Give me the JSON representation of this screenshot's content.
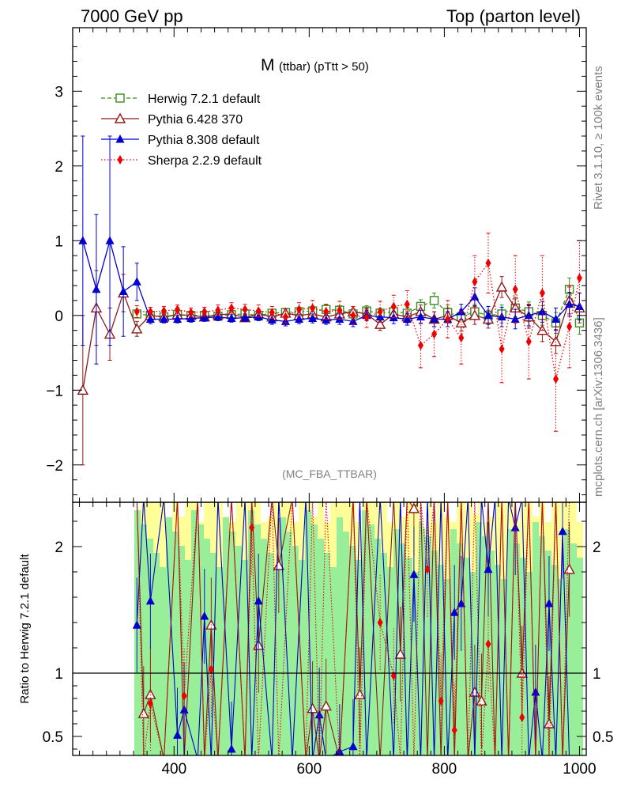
{
  "header": {
    "left": "7000 GeV pp",
    "right": "Top (parton level)"
  },
  "side_labels": {
    "rivet": "Rivet 3.1.10, ≥ 100k events",
    "mcplots": "mcplots.cern.ch [arXiv:1306.3436]"
  },
  "plot_title": {
    "main": "M",
    "sub": "(ttbar) (pTtt > 50)"
  },
  "analysis_tag": "(MC_FBA_TTBAR)",
  "ratio_ylabel": "Ratio to Herwig 7.2.1 default",
  "colors": {
    "herwig": "#3a8c1f",
    "pythia6": "#8b1a1a",
    "pythia8": "#0000d0",
    "sherpa": "#ee0000",
    "band_green": "#99ee99",
    "band_yellow": "#ffff99"
  },
  "chart_data": [
    {
      "type": "scatter",
      "panel": "main",
      "x_ticks": [
        "400",
        "600",
        "800",
        "1000"
      ],
      "y_ticks": [
        "−2",
        "−1",
        "0",
        "1",
        "2",
        "3"
      ],
      "xlim": [
        250,
        1010
      ],
      "ylim": [
        -2.5,
        3.85
      ],
      "legend_position": "top-left",
      "x": [
        265,
        285,
        305,
        325,
        345,
        365,
        385,
        405,
        425,
        445,
        465,
        485,
        505,
        525,
        545,
        565,
        585,
        605,
        625,
        645,
        665,
        685,
        705,
        725,
        745,
        765,
        785,
        805,
        825,
        845,
        865,
        885,
        905,
        925,
        945,
        965,
        985,
        1000
      ],
      "series": [
        {
          "name": "Herwig 7.2.1 default",
          "marker": "square-open",
          "line": "dashed",
          "values": [
            null,
            null,
            null,
            null,
            0.02,
            0.0,
            -0.02,
            0.01,
            0.0,
            0.0,
            -0.01,
            0.01,
            0.02,
            0.0,
            0.03,
            0.04,
            0.05,
            0.06,
            0.08,
            0.07,
            0.02,
            0.06,
            0.03,
            0.05,
            0.03,
            0.12,
            0.2,
            0.04,
            -0.02,
            0.05,
            0.0,
            0.02,
            0.1,
            0.05,
            0.0,
            -0.1,
            0.35,
            -0.1
          ],
          "errors": [
            null,
            null,
            null,
            null,
            0.05,
            0.04,
            0.04,
            0.04,
            0.04,
            0.04,
            0.04,
            0.05,
            0.05,
            0.05,
            0.05,
            0.05,
            0.06,
            0.06,
            0.06,
            0.06,
            0.07,
            0.07,
            0.07,
            0.08,
            0.08,
            0.09,
            0.1,
            0.1,
            0.1,
            0.1,
            0.12,
            0.12,
            0.12,
            0.13,
            0.13,
            0.14,
            0.15,
            0.15
          ]
        },
        {
          "name": "Pythia 6.428 370",
          "marker": "triangle-open",
          "line": "solid",
          "values": [
            -1.0,
            0.1,
            -0.25,
            0.3,
            -0.18,
            0.0,
            -0.02,
            0.01,
            0.0,
            -0.02,
            0.01,
            0.02,
            -0.03,
            0.02,
            -0.02,
            0.03,
            0.0,
            0.02,
            -0.02,
            0.02,
            0.05,
            0.02,
            -0.12,
            0.02,
            -0.02,
            0.05,
            -0.05,
            0.0,
            -0.1,
            0.0,
            -0.05,
            0.38,
            0.1,
            -0.02,
            -0.2,
            -0.35,
            0.2,
            0.1
          ],
          "errors": [
            1.0,
            0.5,
            0.35,
            0.25,
            0.1,
            0.05,
            0.05,
            0.05,
            0.05,
            0.05,
            0.05,
            0.05,
            0.05,
            0.05,
            0.05,
            0.06,
            0.06,
            0.06,
            0.07,
            0.07,
            0.07,
            0.07,
            0.08,
            0.08,
            0.08,
            0.09,
            0.1,
            0.1,
            0.11,
            0.12,
            0.12,
            0.14,
            0.14,
            0.15,
            0.15,
            0.16,
            0.18,
            0.2
          ]
        },
        {
          "name": "Pythia 8.308 default",
          "marker": "triangle-filled",
          "line": "solid",
          "values": [
            1.0,
            0.35,
            1.0,
            0.32,
            0.45,
            -0.05,
            -0.05,
            -0.05,
            -0.04,
            -0.03,
            -0.02,
            -0.04,
            -0.03,
            -0.02,
            -0.06,
            -0.08,
            -0.05,
            -0.04,
            -0.06,
            -0.05,
            -0.08,
            0.0,
            -0.02,
            -0.03,
            -0.05,
            -0.02,
            -0.05,
            -0.05,
            0.05,
            0.25,
            0.0,
            -0.02,
            -0.05,
            0.0,
            0.05,
            -0.05,
            0.15,
            0.12
          ],
          "errors": [
            1.4,
            1.0,
            1.4,
            0.6,
            0.25,
            0.06,
            0.05,
            0.05,
            0.05,
            0.05,
            0.05,
            0.05,
            0.05,
            0.05,
            0.06,
            0.06,
            0.06,
            0.06,
            0.06,
            0.07,
            0.07,
            0.07,
            0.07,
            0.08,
            0.08,
            0.09,
            0.1,
            0.1,
            0.1,
            0.12,
            0.12,
            0.13,
            0.13,
            0.14,
            0.14,
            0.15,
            0.16,
            0.18
          ]
        },
        {
          "name": "Sherpa 2.2.9 default",
          "marker": "diamond-filled",
          "line": "dotted",
          "values": [
            null,
            null,
            null,
            null,
            0.05,
            0.05,
            0.06,
            0.08,
            0.04,
            0.05,
            0.07,
            0.1,
            0.08,
            0.06,
            0.04,
            -0.02,
            0.08,
            0.1,
            0.05,
            0.07,
            0.0,
            -0.03,
            0.05,
            0.12,
            0.15,
            -0.4,
            -0.25,
            -0.05,
            -0.3,
            0.45,
            0.7,
            -0.45,
            0.35,
            -0.35,
            0.3,
            -0.85,
            -0.15,
            0.5
          ],
          "errors": [
            null,
            null,
            null,
            null,
            0.08,
            0.06,
            0.06,
            0.06,
            0.06,
            0.06,
            0.07,
            0.07,
            0.07,
            0.08,
            0.08,
            0.08,
            0.09,
            0.1,
            0.1,
            0.12,
            0.12,
            0.13,
            0.14,
            0.15,
            0.18,
            0.3,
            0.3,
            0.25,
            0.35,
            0.35,
            0.4,
            0.45,
            0.45,
            0.5,
            0.5,
            0.7,
            0.55,
            0.5
          ]
        }
      ]
    },
    {
      "type": "scatter",
      "panel": "ratio",
      "x_ticks": [
        "400",
        "600",
        "800",
        "1000"
      ],
      "y_ticks": [
        "0.5",
        "1",
        "2"
      ],
      "xlim": [
        250,
        1010
      ],
      "ylim": [
        0.35,
        2.35
      ],
      "reference_line": 1,
      "x": [
        345,
        355,
        365,
        385,
        405,
        415,
        435,
        445,
        455,
        465,
        485,
        505,
        515,
        525,
        545,
        555,
        575,
        595,
        605,
        615,
        625,
        645,
        665,
        675,
        685,
        705,
        725,
        735,
        745,
        755,
        765,
        775,
        785,
        795,
        805,
        815,
        825,
        835,
        845,
        855,
        865,
        875,
        885,
        895,
        905,
        915,
        925,
        935,
        945,
        955,
        965,
        975,
        985
      ],
      "series": [
        {
          "name": "Pythia 6.428 370",
          "values": [
            null,
            0.68,
            0.83,
            null,
            null,
            null,
            null,
            null,
            1.38,
            null,
            null,
            null,
            null,
            1.22,
            null,
            1.85,
            null,
            null,
            0.72,
            null,
            0.74,
            null,
            null,
            0.83,
            null,
            null,
            null,
            1.15,
            null,
            2.3,
            null,
            null,
            null,
            null,
            null,
            null,
            null,
            null,
            0.85,
            0.78,
            null,
            null,
            null,
            null,
            null,
            1.0,
            null,
            null,
            null,
            0.6,
            null,
            null,
            1.82
          ]
        },
        {
          "name": "Pythia 8.308 default",
          "values": [
            1.38,
            null,
            1.57,
            null,
            0.51,
            0.71,
            null,
            1.45,
            null,
            null,
            0.4,
            null,
            null,
            1.57,
            null,
            null,
            null,
            null,
            null,
            0.67,
            null,
            0.38,
            0.42,
            null,
            null,
            null,
            null,
            null,
            null,
            1.78,
            null,
            null,
            null,
            null,
            null,
            1.48,
            1.55,
            null,
            null,
            null,
            1.82,
            null,
            null,
            null,
            2.15,
            null,
            null,
            0.85,
            null,
            1.55,
            null,
            2.12,
            null
          ]
        },
        {
          "name": "Sherpa 2.2.9 default",
          "values": [
            null,
            null,
            0.76,
            null,
            null,
            0.82,
            null,
            null,
            1.03,
            null,
            null,
            null,
            2.15,
            null,
            null,
            null,
            null,
            null,
            null,
            null,
            null,
            null,
            null,
            null,
            null,
            1.4,
            0.98,
            null,
            null,
            null,
            null,
            1.82,
            null,
            0.78,
            null,
            0.55,
            null,
            null,
            null,
            null,
            1.23,
            null,
            null,
            null,
            null,
            0.65,
            null,
            null,
            null,
            null,
            null,
            null,
            null
          ]
        }
      ]
    }
  ],
  "legend": [
    {
      "key": "herwig",
      "label": "Herwig 7.2.1 default"
    },
    {
      "key": "pythia6",
      "label": "Pythia 6.428 370"
    },
    {
      "key": "pythia8",
      "label": "Pythia 8.308 default"
    },
    {
      "key": "sherpa",
      "label": "Sherpa 2.2.9 default"
    }
  ]
}
